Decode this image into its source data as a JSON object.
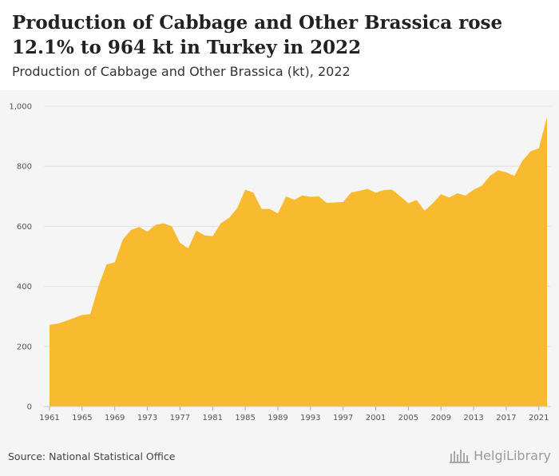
{
  "header": {
    "title": "Production of Cabbage and Other Brassica rose 12.1% to 964 kt in Turkey in 2022",
    "subtitle": "Production of Cabbage and Other Brassica (kt), 2022"
  },
  "footer": {
    "source": "Source: National Statistical Office",
    "logo_text": "HelgiLibrary"
  },
  "colors": {
    "area": "#f8bb2f",
    "grid": "#e2e2e2",
    "background": "#f5f5f5"
  },
  "chart_data": {
    "type": "area",
    "title": "Production of Cabbage and Other Brassica rose 12.1% to 964 kt in Turkey in 2022",
    "subtitle": "Production of Cabbage and Other Brassica (kt), 2022",
    "xlabel": "",
    "ylabel": "",
    "ylim": [
      0,
      1000
    ],
    "yticks": [
      0,
      200,
      400,
      600,
      800,
      1000
    ],
    "ytick_labels": [
      "0",
      "200",
      "400",
      "600",
      "800",
      "1,000"
    ],
    "xticks": [
      1961,
      1965,
      1969,
      1973,
      1977,
      1981,
      1985,
      1989,
      1993,
      1997,
      2001,
      2005,
      2009,
      2013,
      2017,
      2021
    ],
    "xtick_labels": [
      "1961",
      "1965",
      "1969",
      "1973",
      "1977",
      "1981",
      "1985",
      "1989",
      "1993",
      "1997",
      "2001",
      "2005",
      "2009",
      "2013",
      "2017",
      "2021"
    ],
    "grid": true,
    "x": [
      1961,
      1962,
      1963,
      1964,
      1965,
      1966,
      1967,
      1968,
      1969,
      1970,
      1971,
      1972,
      1973,
      1974,
      1975,
      1976,
      1977,
      1978,
      1979,
      1980,
      1981,
      1982,
      1983,
      1984,
      1985,
      1986,
      1987,
      1988,
      1989,
      1990,
      1991,
      1992,
      1993,
      1994,
      1995,
      1996,
      1997,
      1998,
      1999,
      2000,
      2001,
      2002,
      2003,
      2004,
      2005,
      2006,
      2007,
      2008,
      2009,
      2010,
      2011,
      2012,
      2013,
      2014,
      2015,
      2016,
      2017,
      2018,
      2019,
      2020,
      2021,
      2022
    ],
    "series": [
      {
        "values": [
          272,
          276,
          285,
          295,
          305,
          308,
          400,
          473,
          480,
          557,
          588,
          598,
          582,
          605,
          610,
          600,
          545,
          527,
          586,
          570,
          567,
          610,
          628,
          660,
          722,
          712,
          658,
          658,
          643,
          700,
          688,
          703,
          698,
          700,
          678,
          680,
          681,
          713,
          718,
          725,
          712,
          721,
          722,
          700,
          677,
          688,
          652,
          677,
          707,
          696,
          710,
          702,
          722,
          735,
          768,
          787,
          780,
          768,
          819,
          850,
          860,
          964
        ]
      }
    ]
  }
}
